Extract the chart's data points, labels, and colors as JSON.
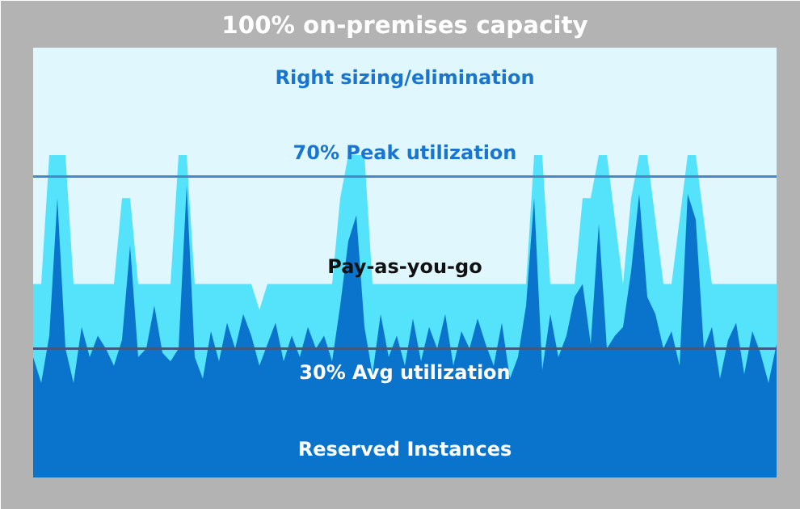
{
  "chart_data": {
    "type": "area",
    "title": "100% on-premises capacity",
    "categories": [
      null,
      null,
      null,
      null,
      null,
      null,
      null,
      null,
      null,
      null,
      null,
      null,
      null,
      null,
      null,
      null,
      null,
      null,
      null,
      null,
      null,
      null,
      null,
      null,
      null,
      null,
      null,
      null,
      null,
      null,
      null,
      null,
      null,
      null,
      null,
      null,
      null,
      null,
      null,
      null,
      null,
      null,
      null,
      null,
      null,
      null,
      null,
      null,
      null,
      null,
      null,
      null,
      null,
      null,
      null,
      null,
      null,
      null,
      null,
      null,
      null,
      null,
      null,
      null,
      null,
      null,
      null,
      null,
      null,
      null,
      null,
      null,
      null,
      null,
      null,
      null,
      null,
      null,
      null,
      null,
      null,
      null,
      null,
      null,
      null,
      null,
      null,
      null,
      null,
      null,
      null,
      null,
      null
    ],
    "ylim": [
      0,
      100
    ],
    "tick_labels": false,
    "series": [
      {
        "name": "Pay-as-you-go",
        "color": "#55e3fb",
        "values": [
          45,
          45,
          75,
          75,
          75,
          45,
          45,
          45,
          45,
          45,
          45,
          65,
          65,
          45,
          45,
          45,
          45,
          45,
          75,
          75,
          45,
          45,
          45,
          45,
          45,
          45,
          45,
          45,
          39,
          45,
          45,
          45,
          45,
          45,
          45,
          45,
          45,
          45,
          65,
          75,
          75,
          75,
          45,
          45,
          45,
          45,
          45,
          45,
          45,
          45,
          45,
          45,
          45,
          45,
          45,
          45,
          45,
          45,
          45,
          45,
          45,
          45,
          75,
          75,
          45,
          45,
          45,
          45,
          65,
          65,
          75,
          75,
          60,
          45,
          65,
          75,
          75,
          60,
          45,
          45,
          60,
          75,
          75,
          60,
          45,
          45,
          45,
          45,
          45,
          45,
          45,
          45,
          45
        ]
      },
      {
        "color": "#0a73cc",
        "values": [
          28,
          22,
          33,
          65,
          30,
          22,
          35,
          28,
          33,
          30,
          26,
          32,
          54,
          28,
          30,
          40,
          29,
          27,
          30,
          68,
          28,
          23,
          34,
          27,
          36,
          30,
          38,
          33,
          26,
          31,
          36,
          27,
          33,
          28,
          35,
          30,
          33,
          27,
          40,
          55,
          61,
          35,
          24,
          38,
          28,
          33,
          26,
          37,
          27,
          35,
          30,
          38,
          26,
          34,
          30,
          37,
          31,
          26,
          36,
          23,
          28,
          40,
          65,
          25,
          38,
          28,
          33,
          42,
          45,
          31,
          59,
          30,
          33,
          35,
          48,
          66,
          42,
          38,
          30,
          34,
          26,
          66,
          60,
          30,
          35,
          23,
          32,
          36,
          24,
          34,
          29,
          22,
          31
        ]
      }
    ],
    "bands": [
      {
        "axis": "y",
        "from": 39,
        "to": 100,
        "label": "Right sizing/elimination",
        "color": "#dff7fd"
      }
    ],
    "ref_lines": [
      {
        "axis": "y",
        "value": 70,
        "label": "70% Peak utilization",
        "color": "#4a86c8"
      },
      {
        "axis": "y",
        "value": 30,
        "label": "30% Avg utilization",
        "color": "#3d5a80"
      }
    ],
    "annotations": [
      "Reserved Instances"
    ]
  }
}
